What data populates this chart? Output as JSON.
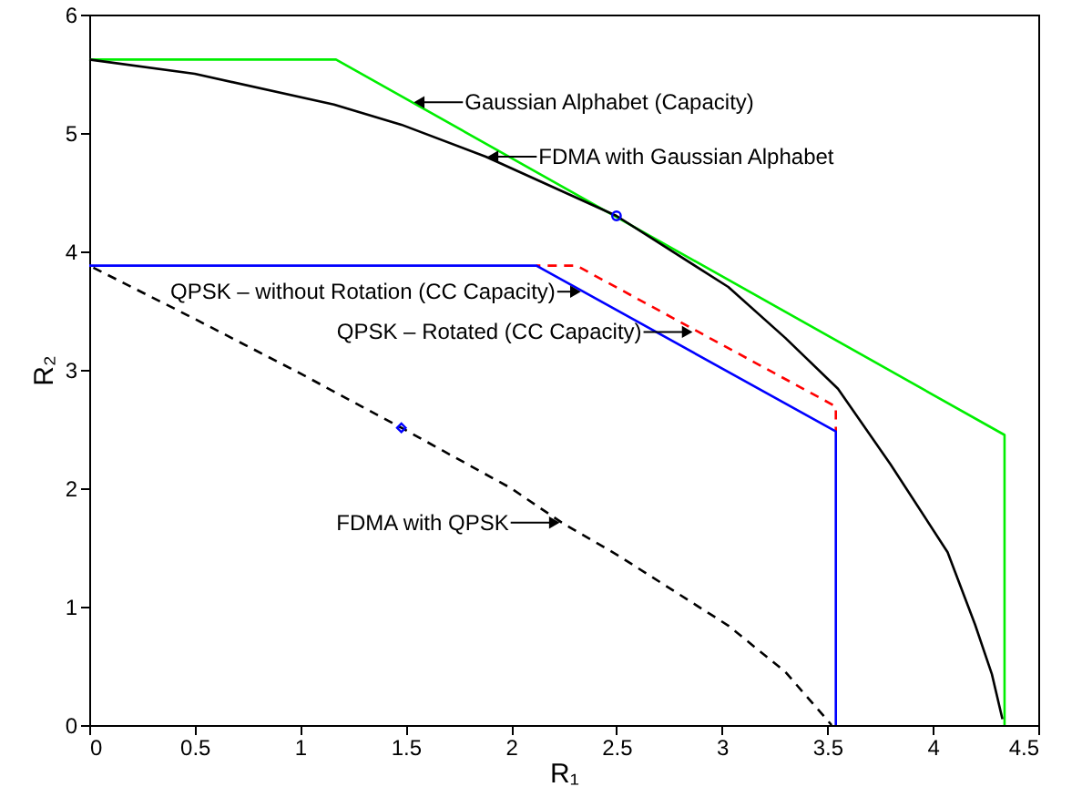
{
  "chart_data": {
    "type": "line",
    "xlabel": "R₁",
    "ylabel": "R₂",
    "xlim": [
      0,
      4.5
    ],
    "ylim": [
      0,
      6
    ],
    "xticks": [
      0,
      0.5,
      1,
      1.5,
      2,
      2.5,
      3,
      3.5,
      4,
      4.5
    ],
    "yticks": [
      0,
      1,
      2,
      3,
      4,
      5,
      6
    ],
    "grid": false,
    "series": [
      {
        "color": "#00ee00",
        "line_style": "solid",
        "x": [
          0,
          1.17,
          4.34,
          4.34
        ],
        "values": [
          5.62,
          5.62,
          2.45,
          0
        ]
      },
      {
        "color": "#000000",
        "line_style": "solid",
        "x": [
          0,
          0.5,
          1.16,
          1.48,
          1.88,
          2.5,
          3.03,
          3.3,
          3.55,
          3.8,
          4.07,
          4.2,
          4.28,
          4.33
        ],
        "values": [
          5.62,
          5.5,
          5.24,
          5.07,
          4.8,
          4.3,
          3.7,
          3.27,
          2.84,
          2.2,
          1.46,
          0.85,
          0.43,
          0.05
        ]
      },
      {
        "color": "#ff0000",
        "line_style": "dashed",
        "x": [
          2.12,
          2.31,
          3.54,
          3.54
        ],
        "values": [
          3.88,
          3.88,
          2.69,
          2.48
        ]
      },
      {
        "color": "#0000ff",
        "line_style": "solid",
        "x": [
          0,
          2.12,
          3.54,
          3.54
        ],
        "values": [
          3.88,
          3.88,
          2.48,
          0
        ]
      },
      {
        "color": "#000000",
        "line_style": "dashed",
        "x": [
          0,
          0.5,
          1,
          1.48,
          2,
          2.24,
          2.51,
          3.03,
          3.3,
          3.52
        ],
        "values": [
          3.88,
          3.43,
          2.97,
          2.51,
          2.0,
          1.71,
          1.43,
          0.84,
          0.45,
          0
        ]
      },
      {
        "type": "scatter",
        "color": "#0000ff",
        "marker": "circle",
        "x": [
          2.5
        ],
        "values": [
          4.3
        ]
      },
      {
        "type": "scatter",
        "color": "#0000ff",
        "marker": "diamond",
        "x": [
          1.48
        ],
        "values": [
          2.51
        ]
      }
    ],
    "annotations": [
      {
        "text": "Gaussian Alphabet (Capacity)",
        "x": 1.53,
        "y": 5.26
      },
      {
        "text": "FDMA with Gaussian Alphabet",
        "x": 1.88,
        "y": 4.8
      },
      {
        "text": "QPSK – without Rotation (CC Capacity)",
        "x": 2.34,
        "y": 3.66
      },
      {
        "text": "QPSK – Rotated (CC Capacity)",
        "x": 2.87,
        "y": 3.32
      },
      {
        "text": "FDMA with QPSK",
        "x": 2.24,
        "y": 1.71
      }
    ]
  }
}
